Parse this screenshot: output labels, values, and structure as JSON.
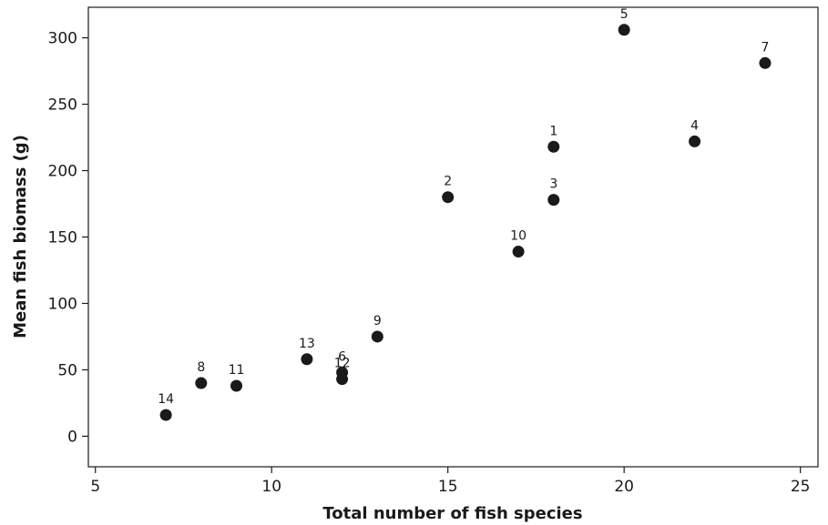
{
  "chart_data": {
    "type": "scatter",
    "title": "",
    "xlabel": "Total number of fish species",
    "ylabel": "Mean fish biomass (g)",
    "xlim": [
      4.8,
      25.5
    ],
    "ylim": [
      -23,
      323
    ],
    "xticks": [
      5,
      10,
      15,
      20,
      25
    ],
    "yticks": [
      0,
      50,
      100,
      150,
      200,
      250,
      300
    ],
    "grid": false,
    "points": [
      {
        "label": "1",
        "x": 18,
        "y": 218
      },
      {
        "label": "2",
        "x": 15,
        "y": 180
      },
      {
        "label": "3",
        "x": 18,
        "y": 178
      },
      {
        "label": "4",
        "x": 22,
        "y": 222
      },
      {
        "label": "5",
        "x": 20,
        "y": 306
      },
      {
        "label": "6",
        "x": 12,
        "y": 48
      },
      {
        "label": "7",
        "x": 24,
        "y": 281
      },
      {
        "label": "8",
        "x": 8,
        "y": 40
      },
      {
        "label": "9",
        "x": 13,
        "y": 75
      },
      {
        "label": "10",
        "x": 17,
        "y": 139
      },
      {
        "label": "11",
        "x": 9,
        "y": 38
      },
      {
        "label": "12",
        "x": 12,
        "y": 43
      },
      {
        "label": "13",
        "x": 11,
        "y": 58
      },
      {
        "label": "14",
        "x": 7,
        "y": 16
      }
    ]
  }
}
